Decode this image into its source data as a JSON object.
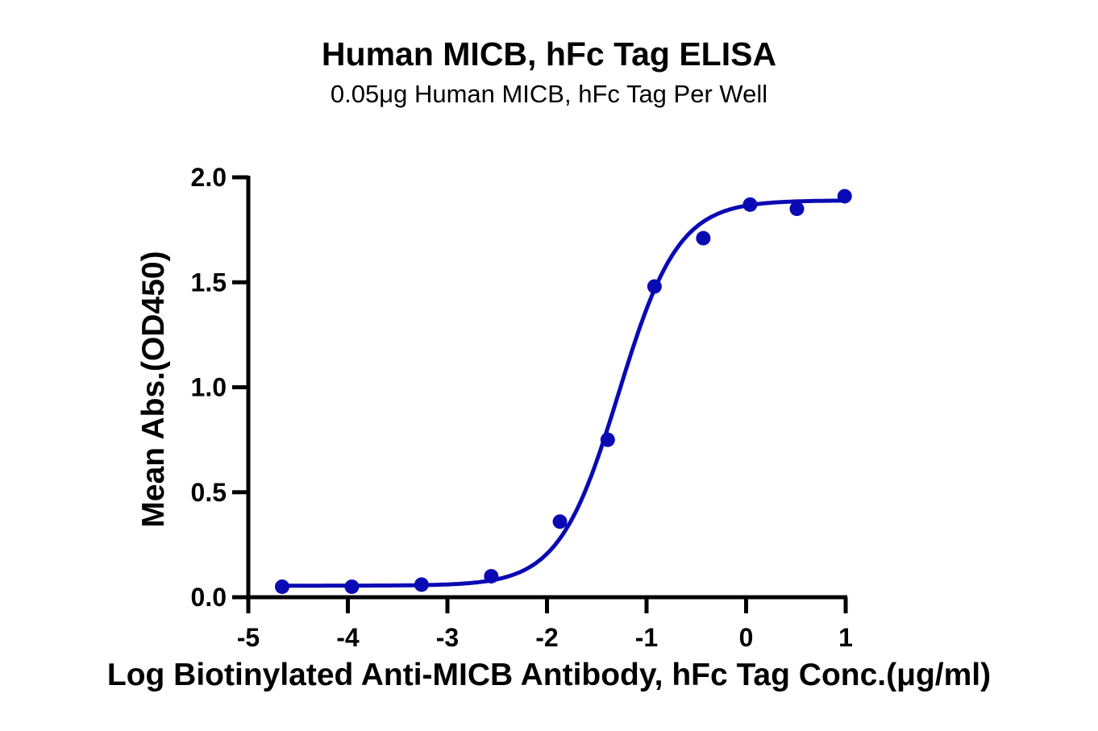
{
  "chart_data": {
    "type": "scatter",
    "title": "Human MICB, hFc Tag ELISA",
    "subtitle": "0.05μg Human MICB, hFc Tag Per Well",
    "xlabel": "Log Biotinylated Anti-MICB Antibody, hFc Tag Conc.(μg/ml)",
    "ylabel": "Mean Abs.(OD450)",
    "xlim": [
      -5,
      1
    ],
    "ylim": [
      0,
      2.0
    ],
    "x_ticks": [
      "-5",
      "-4",
      "-3",
      "-2",
      "-1",
      "0",
      "1"
    ],
    "y_ticks": [
      "0.0",
      "0.5",
      "1.0",
      "1.5",
      "2.0"
    ],
    "grid": false,
    "legend": null,
    "series": [
      {
        "name": "Mean Abs.(OD450)",
        "color": "#0a0ab4",
        "marker": "circle",
        "fit": "4PL sigmoidal curve",
        "x": [
          -4.66,
          -3.96,
          -3.26,
          -2.56,
          -1.87,
          -1.39,
          -0.92,
          -0.43,
          0.04,
          0.51,
          0.99
        ],
        "y": [
          0.05,
          0.05,
          0.06,
          0.1,
          0.36,
          0.75,
          1.48,
          1.71,
          1.87,
          1.85,
          1.91
        ]
      }
    ],
    "fit_params": {
      "bottom": 0.055,
      "top": 1.89,
      "logEC50": -1.28,
      "hill_slope": 1.45
    }
  },
  "labels": {
    "title": "Human MICB, hFc Tag ELISA",
    "subtitle": "0.05μg Human MICB, hFc Tag Per Well",
    "xlabel": "Log Biotinylated Anti-MICB Antibody, hFc Tag Conc.(μg/ml)",
    "ylabel": "Mean Abs.(OD450)"
  }
}
